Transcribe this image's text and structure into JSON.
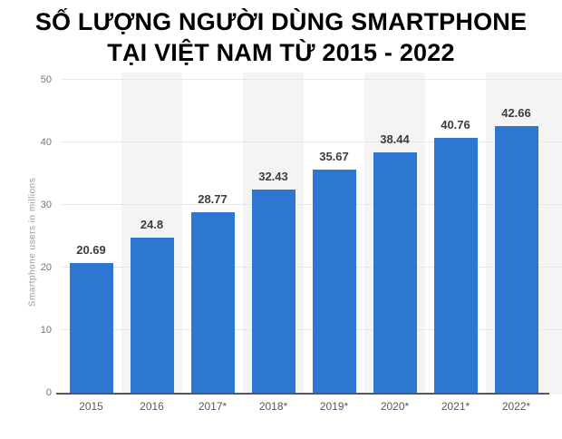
{
  "title": {
    "line1": "SỐ LƯỢNG NGƯỜI DÙNG SMARTPHONE",
    "line2": "TẠI VIỆT NAM TỪ 2015 - 2022"
  },
  "chart_data": {
    "type": "bar",
    "title": "SỐ LƯỢNG NGƯỜI DÙNG SMARTPHONE TẠI VIỆT NAM TỪ 2015 - 2022",
    "categories": [
      "2015",
      "2016",
      "2017*",
      "2018*",
      "2019*",
      "2020*",
      "2021*",
      "2022*"
    ],
    "values": [
      20.69,
      24.8,
      28.77,
      32.43,
      35.67,
      38.44,
      40.76,
      42.66
    ],
    "value_labels": [
      "20.69",
      "24.8",
      "28.77",
      "32.43",
      "35.67",
      "38.44",
      "40.76",
      "42.66"
    ],
    "xlabel": "",
    "ylabel": "Smartphone users in millions",
    "ylim": [
      0,
      50
    ],
    "yticks": [
      0,
      10,
      20,
      30,
      40,
      50
    ],
    "grid": true,
    "legend": false,
    "colors": {
      "bar": "#2d76d2",
      "column_band": "#f4f4f4",
      "gridline": "#e7e7e7",
      "axis_line": "#58585a",
      "y_tick_label": "#767676",
      "x_tick_label": "#59595b",
      "value_label": "#3d3d3f",
      "title": "#000000",
      "background": "#ffffff"
    }
  }
}
